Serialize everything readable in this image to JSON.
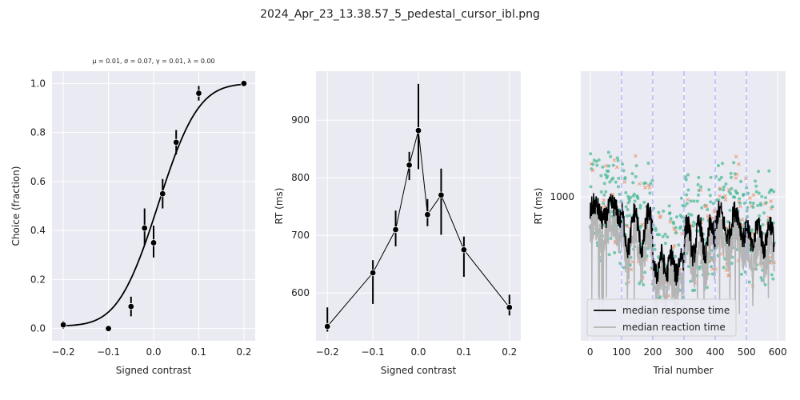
{
  "figure_title": "2024_Apr_23_13.38.57_5_pedestal_cursor_ibl.png",
  "colors": {
    "panel_bg": "#eaeaf2",
    "grid": "#ffffff",
    "black": "#000000",
    "reaction_gray": "#b5b5b5",
    "vline": "#b0b0ff",
    "teal": "#38b48a",
    "orange": "#e8895a"
  },
  "chart_data": [
    {
      "type": "scatter",
      "subtitle": "μ = 0.01, σ = 0.07, γ = 0.01, λ = 0.00",
      "xlabel": "Signed contrast",
      "ylabel": "Choice (fraction)",
      "xlim": [
        -0.225,
        0.225
      ],
      "ylim": [
        -0.05,
        1.05
      ],
      "xticks": [
        -0.2,
        -0.1,
        0.0,
        0.1,
        0.2
      ],
      "xtick_labels": [
        "−0.2",
        "−0.1",
        "0.0",
        "0.1",
        "0.2"
      ],
      "yticks": [
        0.0,
        0.2,
        0.4,
        0.6,
        0.8,
        1.0
      ],
      "ytick_labels": [
        "0.0",
        "0.2",
        "0.4",
        "0.6",
        "0.8",
        "1.0"
      ],
      "grid": true,
      "points": [
        {
          "x": -0.2,
          "y": 0.015,
          "lo": 0.0,
          "hi": 0.03
        },
        {
          "x": -0.1,
          "y": 0.0,
          "lo": 0.0,
          "hi": 0.0
        },
        {
          "x": -0.05,
          "y": 0.09,
          "lo": 0.05,
          "hi": 0.13
        },
        {
          "x": -0.02,
          "y": 0.41,
          "lo": 0.34,
          "hi": 0.49
        },
        {
          "x": 0.0,
          "y": 0.35,
          "lo": 0.29,
          "hi": 0.42
        },
        {
          "x": 0.02,
          "y": 0.55,
          "lo": 0.49,
          "hi": 0.61
        },
        {
          "x": 0.05,
          "y": 0.76,
          "lo": 0.71,
          "hi": 0.81
        },
        {
          "x": 0.1,
          "y": 0.96,
          "lo": 0.93,
          "hi": 0.99
        },
        {
          "x": 0.2,
          "y": 1.0,
          "lo": 1.0,
          "hi": 1.0
        }
      ],
      "fit": {
        "mu": 0.01,
        "sigma": 0.07,
        "gamma": 0.01,
        "lambda": 0.0
      }
    },
    {
      "type": "line",
      "xlabel": "Signed contrast",
      "ylabel": "RT (ms)",
      "xlim": [
        -0.225,
        0.225
      ],
      "ylim": [
        517,
        985
      ],
      "xticks": [
        -0.2,
        -0.1,
        0.0,
        0.1,
        0.2
      ],
      "xtick_labels": [
        "−0.2",
        "−0.1",
        "0.0",
        "0.1",
        "0.2"
      ],
      "yticks": [
        600,
        700,
        800,
        900
      ],
      "ytick_labels": [
        "600",
        "700",
        "800",
        "900"
      ],
      "grid": true,
      "points": [
        {
          "x": -0.2,
          "y": 542,
          "lo": 533,
          "hi": 575
        },
        {
          "x": -0.1,
          "y": 635,
          "lo": 581,
          "hi": 657
        },
        {
          "x": -0.05,
          "y": 710,
          "lo": 681,
          "hi": 743
        },
        {
          "x": -0.02,
          "y": 822,
          "lo": 796,
          "hi": 845
        },
        {
          "x": 0.0,
          "y": 882,
          "lo": 815,
          "hi": 963
        },
        {
          "x": 0.02,
          "y": 736,
          "lo": 716,
          "hi": 763
        },
        {
          "x": 0.05,
          "y": 770,
          "lo": 701,
          "hi": 816
        },
        {
          "x": 0.1,
          "y": 675,
          "lo": 628,
          "hi": 698
        },
        {
          "x": 0.2,
          "y": 575,
          "lo": 561,
          "hi": 597
        }
      ]
    },
    {
      "type": "line",
      "xlabel": "Trial number",
      "ylabel": "RT (ms)",
      "yscale": "log",
      "xlim": [
        -30,
        625
      ],
      "ylim": [
        290,
        2950
      ],
      "xticks": [
        0,
        100,
        200,
        300,
        400,
        500,
        600
      ],
      "xtick_labels": [
        "0",
        "100",
        "200",
        "300",
        "400",
        "500",
        "600"
      ],
      "yticks": [
        1000
      ],
      "ytick_labels": [
        "1000"
      ],
      "grid": true,
      "vlines": [
        100,
        200,
        300,
        400,
        500
      ],
      "legend": {
        "placement": "lower-left",
        "entries": [
          "median response time",
          "median reaction time"
        ]
      },
      "series": [
        {
          "name": "median response time",
          "style": "line",
          "color": "#000000"
        },
        {
          "name": "median reaction time",
          "style": "line",
          "color": "#b5b5b5"
        },
        {
          "style": "dot",
          "color": "#38b48a"
        },
        {
          "style": "cross",
          "color": "#e8895a"
        }
      ],
      "trial_range": [
        0,
        590
      ]
    }
  ]
}
